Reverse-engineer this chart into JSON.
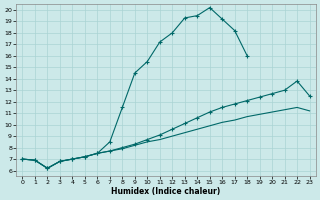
{
  "xlabel": "Humidex (Indice chaleur)",
  "ylabel": "",
  "xlim": [
    -0.5,
    23.5
  ],
  "ylim": [
    5.5,
    20.5
  ],
  "xticks": [
    0,
    1,
    2,
    3,
    4,
    5,
    6,
    7,
    8,
    9,
    10,
    11,
    12,
    13,
    14,
    15,
    16,
    17,
    18,
    19,
    20,
    21,
    22,
    23
  ],
  "yticks": [
    6,
    7,
    8,
    9,
    10,
    11,
    12,
    13,
    14,
    15,
    16,
    17,
    18,
    19,
    20
  ],
  "background_color": "#cce9e9",
  "grid_color": "#aad4d4",
  "line_color": "#006868",
  "line1_x": [
    0,
    1,
    2,
    3,
    4,
    5,
    6,
    7,
    8,
    9,
    10,
    11,
    12,
    13,
    14,
    15,
    16,
    17,
    18,
    19,
    20,
    21,
    22,
    23
  ],
  "line1_y": [
    7.0,
    6.9,
    6.2,
    6.8,
    7.0,
    7.2,
    7.5,
    8.5,
    11.5,
    14.5,
    15.5,
    17.2,
    18.0,
    19.3,
    19.5,
    20.2,
    19.2,
    18.2,
    16.0,
    null,
    null,
    null,
    null,
    null
  ],
  "line2_x": [
    0,
    1,
    2,
    3,
    4,
    5,
    6,
    7,
    8,
    9,
    10,
    11,
    12,
    13,
    14,
    15,
    16,
    17,
    18,
    19,
    20,
    21,
    22,
    23
  ],
  "line2_y": [
    7.0,
    6.9,
    6.2,
    6.8,
    7.0,
    7.2,
    7.5,
    7.7,
    8.0,
    8.3,
    8.7,
    9.1,
    9.6,
    10.1,
    10.6,
    11.1,
    11.5,
    11.8,
    12.1,
    12.4,
    12.7,
    13.0,
    13.8,
    12.5
  ],
  "line3_x": [
    0,
    1,
    2,
    3,
    4,
    5,
    6,
    7,
    8,
    9,
    10,
    11,
    12,
    13,
    14,
    15,
    16,
    17,
    18,
    19,
    20,
    21,
    22,
    23
  ],
  "line3_y": [
    7.0,
    6.9,
    6.2,
    6.8,
    7.0,
    7.2,
    7.5,
    7.7,
    7.9,
    8.2,
    8.5,
    8.7,
    9.0,
    9.3,
    9.6,
    9.9,
    10.2,
    10.4,
    10.7,
    10.9,
    11.1,
    11.3,
    11.5,
    11.2
  ],
  "marker": "+",
  "markersize": 3.5,
  "linewidth": 0.8
}
